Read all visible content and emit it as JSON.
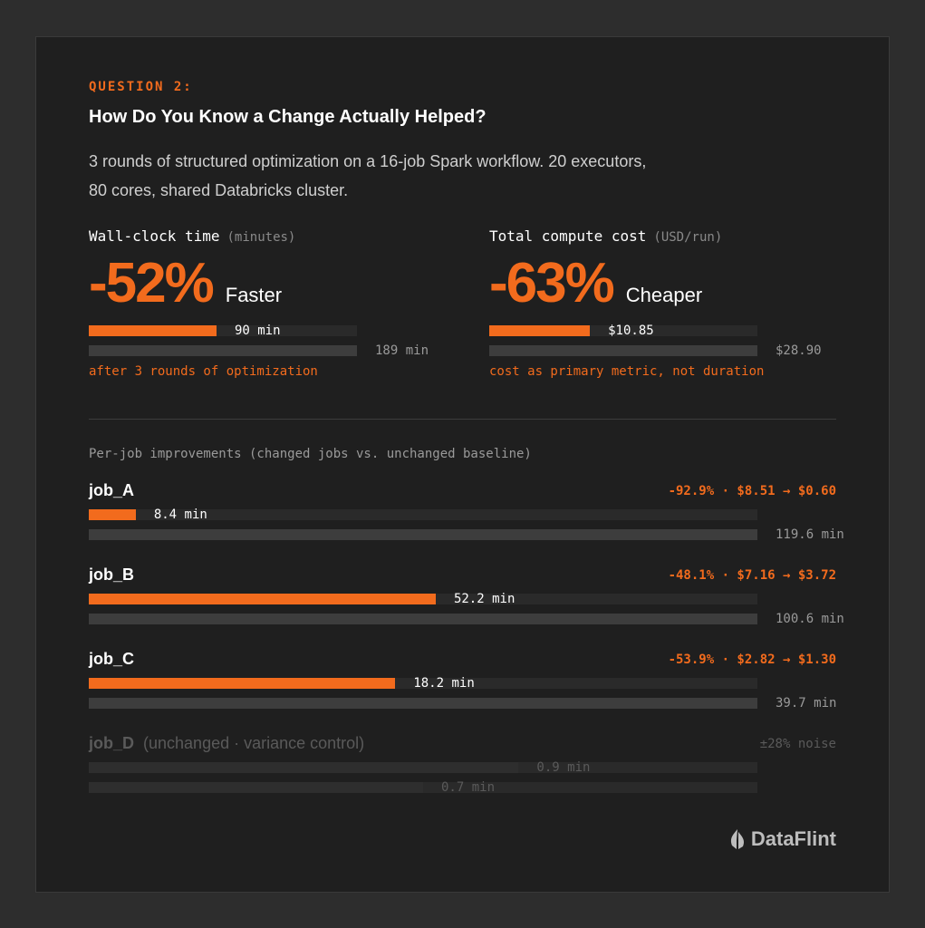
{
  "header": {
    "eyebrow": "QUESTION 2:",
    "title": "How Do You Know a Change Actually Helped?",
    "subtitle_lines": [
      "3 rounds of structured optimization on a 16-job Spark workflow. 20 executors,",
      "80 cores, shared Databricks cluster."
    ]
  },
  "summary": [
    {
      "label": "Wall-clock time",
      "unit": "(minutes)",
      "headline": "-52%",
      "headline_word": "Faster",
      "xlim": [
        0,
        189
      ],
      "bars": [
        {
          "value": 90,
          "value_label": "90 min",
          "color": "#f26b1d"
        },
        {
          "value": 189,
          "value_label": "189 min",
          "color": "#3d3d3d"
        }
      ],
      "note": "after 3 rounds of optimization"
    },
    {
      "label": "Total compute cost",
      "unit": "(USD/run)",
      "headline": "-63%",
      "headline_word": "Cheaper",
      "xlim": [
        0,
        28.9
      ],
      "bars": [
        {
          "value": 10.85,
          "value_label": "$10.85",
          "color": "#f26b1d"
        },
        {
          "value": 28.9,
          "value_label": "$28.90",
          "color": "#3d3d3d"
        }
      ],
      "note": "cost as primary metric, not duration"
    }
  ],
  "jobs_title": "Per-job improvements (changed jobs vs. unchanged baseline)",
  "jobs": [
    {
      "name": "job_A",
      "detail": "-92.9% · $8.51 → $0.60",
      "xlim": [
        0,
        119.6
      ],
      "bars": [
        {
          "value": 8.4,
          "value_label": "8.4 min",
          "color": "#f26b1d"
        },
        {
          "value": 119.6,
          "value_label": "119.6 min",
          "color": "#3d3d3d"
        }
      ]
    },
    {
      "name": "job_B",
      "detail": "-48.1% · $7.16 → $3.72",
      "xlim": [
        0,
        100.6
      ],
      "bars": [
        {
          "value": 52.2,
          "value_label": "52.2 min",
          "color": "#f26b1d"
        },
        {
          "value": 100.6,
          "value_label": "100.6 min",
          "color": "#3d3d3d"
        }
      ]
    },
    {
      "name": "job_C",
      "detail": "-53.9% · $2.82 → $1.30",
      "xlim": [
        0,
        39.7
      ],
      "bars": [
        {
          "value": 18.2,
          "value_label": "18.2 min",
          "color": "#f26b1d"
        },
        {
          "value": 39.7,
          "value_label": "39.7 min",
          "color": "#3d3d3d"
        }
      ]
    },
    {
      "name": "job_D",
      "note": "(unchanged · variance control)",
      "detail": "±28% noise",
      "muted": true,
      "xlim": [
        0,
        1.4
      ],
      "bars": [
        {
          "value": 0.9,
          "value_label": "0.9 min",
          "color": "#2e2e2e"
        },
        {
          "value": 0.7,
          "value_label": "0.7 min",
          "color": "#2e2e2e"
        }
      ]
    }
  ],
  "logo": "DataFlint"
}
